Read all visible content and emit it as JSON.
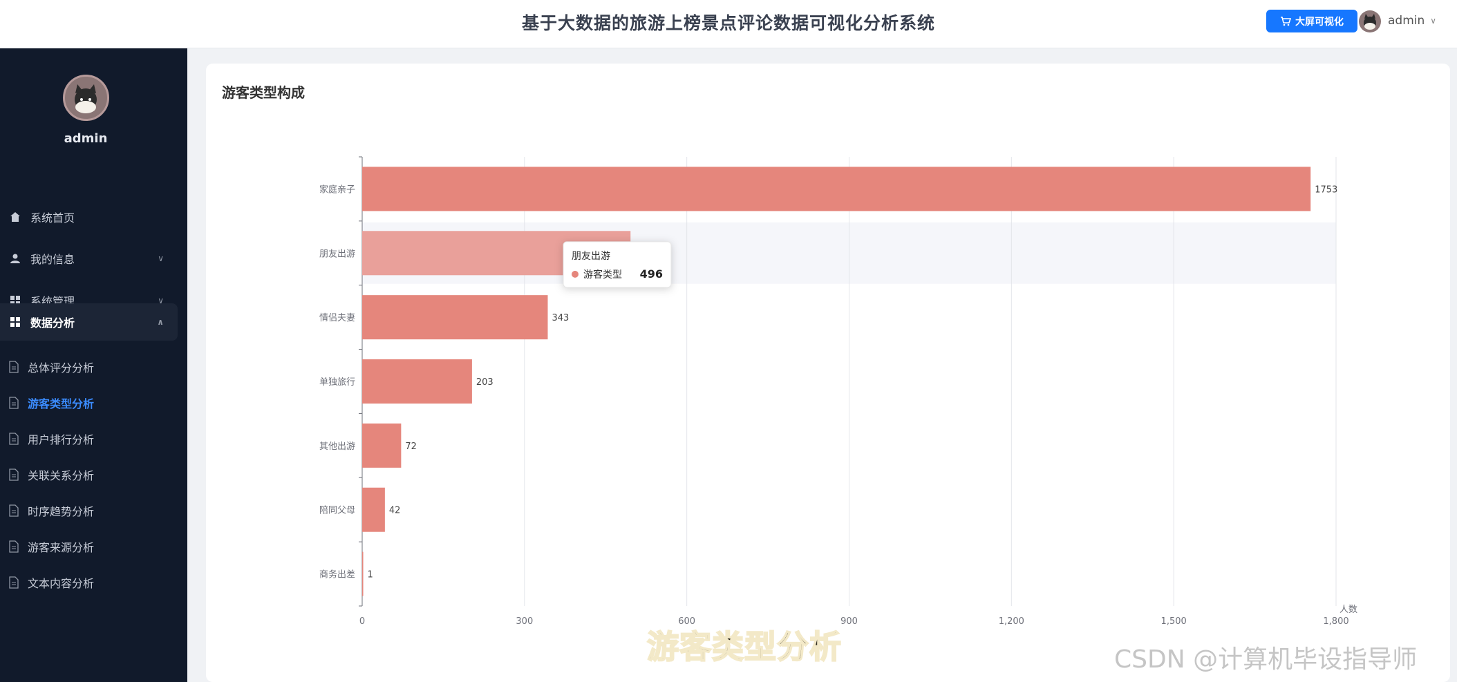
{
  "header": {
    "title": "基于大数据的旅游上榜景点评论数据可视化分析系统",
    "screen_button": "大屏可视化",
    "username": "admin"
  },
  "sidebar": {
    "username": "admin",
    "nav": [
      {
        "label": "系统首页",
        "icon": "home-icon"
      },
      {
        "label": "我的信息",
        "icon": "user-icon"
      },
      {
        "label": "系统管理",
        "icon": "grid-icon"
      },
      {
        "label": "数据分析",
        "icon": "grid-icon"
      }
    ],
    "sub": [
      {
        "label": "总体评分分析"
      },
      {
        "label": "游客类型分析"
      },
      {
        "label": "用户排行分析"
      },
      {
        "label": "关联关系分析"
      },
      {
        "label": "时序趋势分析"
      },
      {
        "label": "游客来源分析"
      },
      {
        "label": "文本内容分析"
      }
    ]
  },
  "card": {
    "title": "游客类型构成"
  },
  "chart_data": {
    "type": "bar",
    "orientation": "horizontal",
    "categories": [
      "家庭亲子",
      "朋友出游",
      "情侣夫妻",
      "单独旅行",
      "其他出游",
      "陪同父母",
      "商务出差"
    ],
    "series": [
      {
        "name": "游客类型",
        "values": [
          1753,
          496,
          343,
          203,
          72,
          42,
          1
        ]
      }
    ],
    "xlabel": "人数",
    "xlim": [
      0,
      1800
    ],
    "xticks": [
      "0",
      "300",
      "600",
      "900",
      "1,200",
      "1,500",
      "1,800"
    ],
    "grid": true,
    "bar_color": "#e5867c",
    "highlight_color": "#e9a09a",
    "tooltip": {
      "category": "朋友出游",
      "series": "游客类型",
      "value": "496"
    }
  },
  "overlay": {
    "caption": "游客类型分析",
    "watermark": "CSDN @计算机毕设指导师"
  }
}
